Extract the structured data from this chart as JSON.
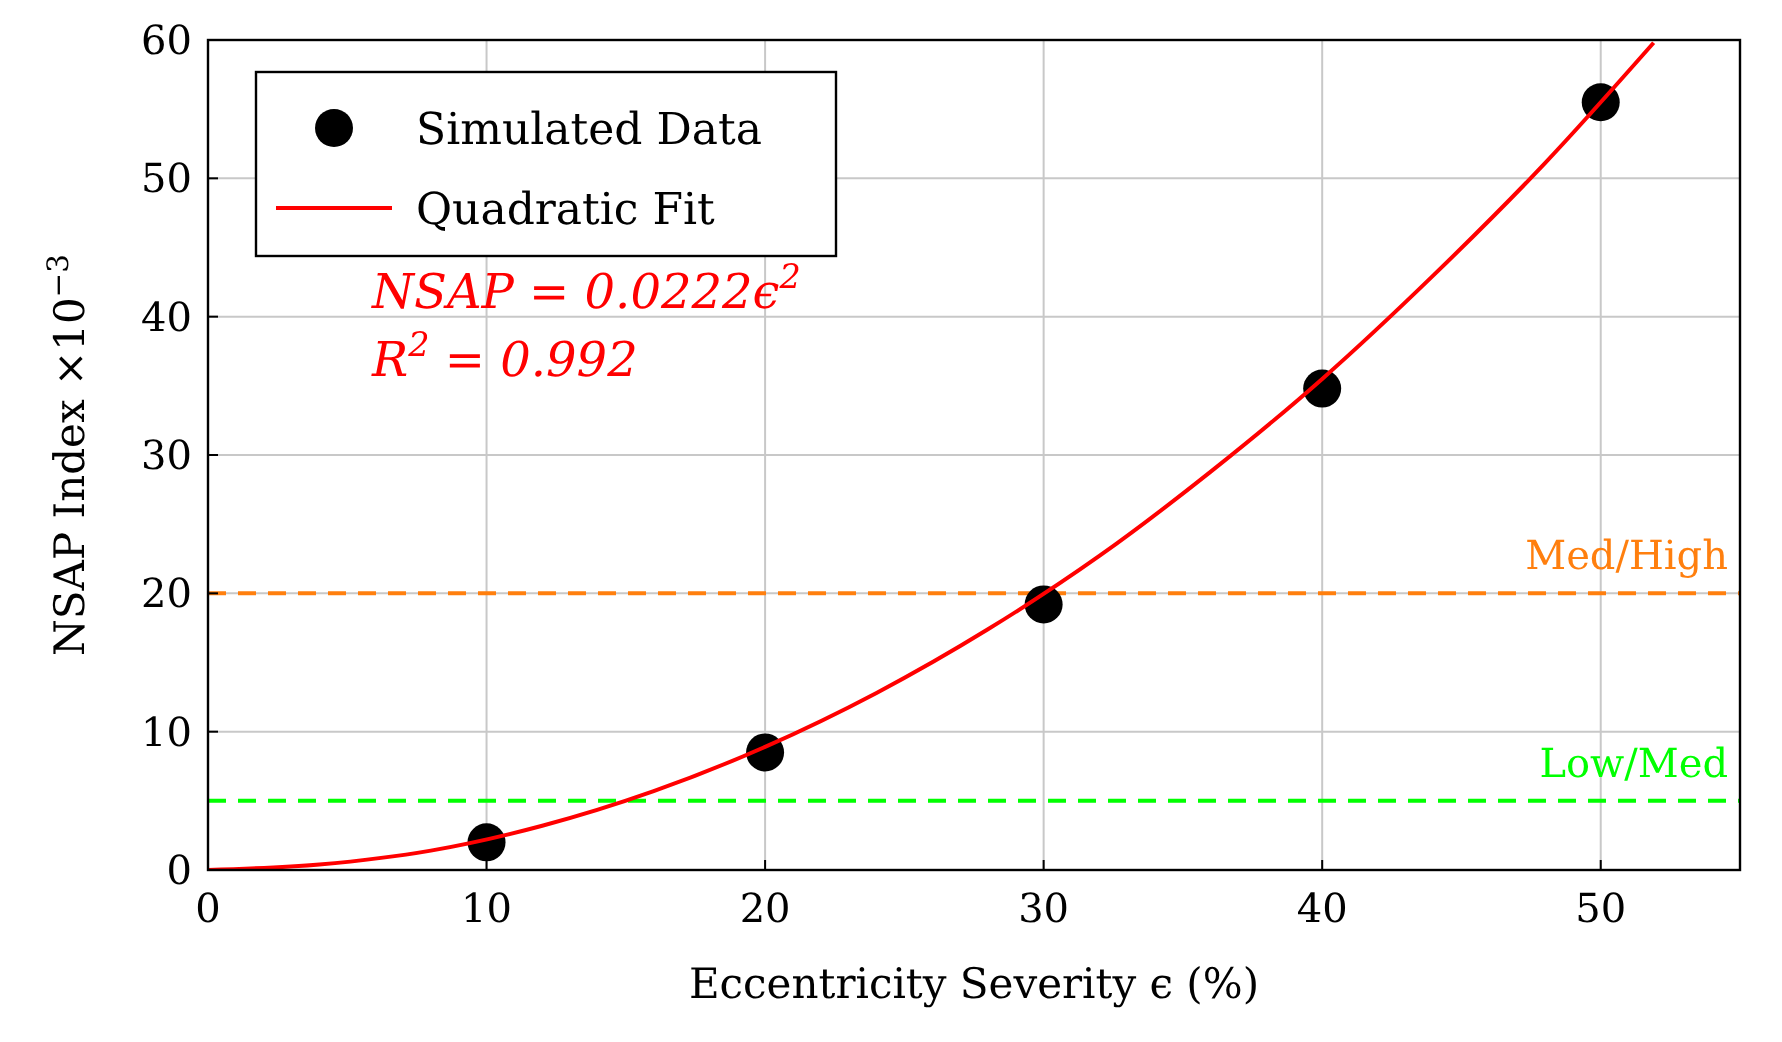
{
  "chart_data": {
    "type": "scatter",
    "xlabel": "Eccentricity Severity ϵ (%)",
    "ylabel": "NSAP Index ×10$^{−3}$",
    "x": [
      10,
      20,
      30,
      40,
      50
    ],
    "series": [
      {
        "name": "Simulated Data",
        "color": "#000000",
        "marker": "circle",
        "values": [
          2.0,
          8.5,
          19.2,
          34.8,
          55.5
        ]
      },
      {
        "name": "Quadratic Fit",
        "type": "line",
        "color": "#ff0000",
        "line_style": "solid",
        "x": [
          0,
          4,
          8,
          12,
          16,
          20,
          24,
          28,
          32,
          36,
          40,
          44,
          48,
          51.9
        ],
        "values": [
          0,
          0.4,
          1.4,
          3.2,
          5.7,
          8.9,
          12.8,
          17.4,
          22.7,
          28.8,
          35.5,
          43.0,
          51.1,
          59.8
        ]
      }
    ],
    "xlim": [
      0,
      55
    ],
    "xticks": [
      0,
      10,
      20,
      30,
      40,
      50
    ],
    "ylim": [
      0,
      60
    ],
    "yticks": [
      0,
      10,
      20,
      30,
      40,
      50,
      60
    ],
    "grid": true,
    "legend": "top left",
    "ref_lines": [
      {
        "axis": "y",
        "value": 20,
        "label": "Med/High",
        "color": "#ff7f0e",
        "line_style": "dashed"
      },
      {
        "axis": "y",
        "value": 5,
        "label": "Low/Med",
        "color": "#00ff00",
        "line_style": "dashed"
      }
    ],
    "annotations": [
      "NSAP = 0.0222ϵ$^{2}$",
      "R$^{2}$ = 0.992"
    ]
  }
}
